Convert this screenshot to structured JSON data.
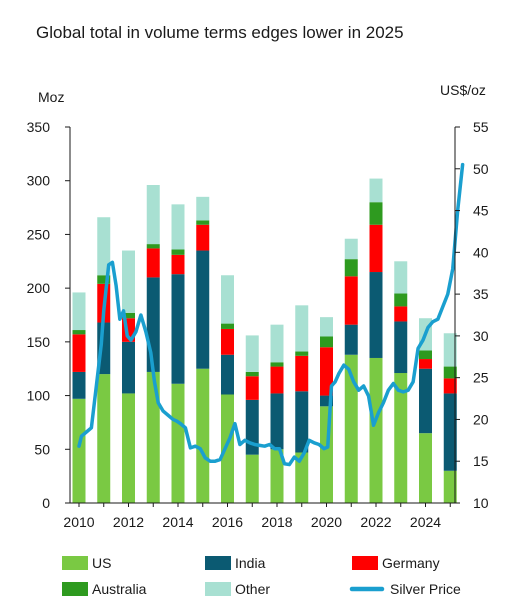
{
  "chart_data": {
    "type": "bar",
    "title": "Global total in volume terms edges lower in 2025",
    "ylabel_left": "Moz",
    "ylabel_right": "US$/oz",
    "ylim_left": [
      0,
      350
    ],
    "ylim_right": [
      10,
      55
    ],
    "yticks_left": [
      "0",
      "50",
      "100",
      "150",
      "200",
      "250",
      "300",
      "350"
    ],
    "yticks_right": [
      "10",
      "15",
      "20",
      "25",
      "30",
      "35",
      "40",
      "45",
      "50",
      "55"
    ],
    "x_tick_labels": [
      "2010",
      "2012",
      "2014",
      "2016",
      "2018",
      "2020",
      "2022",
      "2024"
    ],
    "categories": [
      2010,
      2011,
      2012,
      2013,
      2014,
      2015,
      2016,
      2017,
      2018,
      2019,
      2020,
      2021,
      2022,
      2023,
      2024,
      2025
    ],
    "stacked": true,
    "series": [
      {
        "name": "US",
        "color": "#7ac943",
        "values": [
          97,
          120,
          102,
          122,
          111,
          125,
          101,
          45,
          50,
          47,
          90,
          138,
          135,
          121,
          65,
          30
        ]
      },
      {
        "name": "India",
        "color": "#0b5a72",
        "values": [
          25,
          48,
          48,
          88,
          102,
          110,
          37,
          51,
          52,
          57,
          10,
          28,
          80,
          48,
          60,
          72
        ]
      },
      {
        "name": "Germany",
        "color": "#ff0000",
        "values": [
          35,
          36,
          22,
          27,
          18,
          24,
          24,
          22,
          25,
          33,
          45,
          45,
          44,
          14,
          9,
          14
        ]
      },
      {
        "name": "Australia",
        "color": "#2e9a1f",
        "values": [
          4,
          8,
          5,
          4,
          5,
          4,
          5,
          4,
          4,
          4,
          10,
          16,
          21,
          12,
          8,
          11
        ]
      },
      {
        "name": "Other",
        "color": "#a8e0d2",
        "values": [
          35,
          54,
          58,
          55,
          42,
          22,
          45,
          34,
          35,
          43,
          18,
          19,
          22,
          30,
          30,
          31
        ]
      }
    ],
    "line_series": {
      "name": "Silver Price",
      "color": "#1a9fcf",
      "axis": "right",
      "x": [
        2010.0,
        2010.1,
        2010.3,
        2010.5,
        2010.7,
        2010.9,
        2011.0,
        2011.2,
        2011.35,
        2011.5,
        2011.65,
        2011.8,
        2011.95,
        2012.1,
        2012.3,
        2012.5,
        2012.7,
        2012.9,
        2013.05,
        2013.2,
        2013.4,
        2013.6,
        2013.8,
        2013.95,
        2014.1,
        2014.3,
        2014.5,
        2014.7,
        2014.9,
        2015.1,
        2015.3,
        2015.5,
        2015.7,
        2015.9,
        2016.1,
        2016.3,
        2016.5,
        2016.7,
        2016.9,
        2017.1,
        2017.3,
        2017.5,
        2017.7,
        2017.9,
        2018.1,
        2018.3,
        2018.5,
        2018.7,
        2018.9,
        2019.1,
        2019.3,
        2019.5,
        2019.7,
        2019.9,
        2020.05,
        2020.2,
        2020.35,
        2020.5,
        2020.7,
        2020.9,
        2021.1,
        2021.3,
        2021.5,
        2021.7,
        2021.9,
        2022.1,
        2022.3,
        2022.5,
        2022.7,
        2022.9,
        2023.1,
        2023.3,
        2023.5,
        2023.7,
        2023.9,
        2024.1,
        2024.3,
        2024.5,
        2024.7,
        2024.9,
        2025.1,
        2025.3,
        2025.5
      ],
      "values": [
        16.8,
        18.0,
        18.5,
        19.0,
        24.0,
        29.0,
        33.0,
        38.5,
        38.8,
        36.0,
        32.0,
        33.0,
        30.0,
        29.5,
        30.5,
        32.5,
        30.5,
        28.0,
        24.5,
        22.0,
        21.0,
        20.5,
        20.0,
        19.8,
        19.5,
        19.0,
        16.6,
        16.8,
        16.5,
        15.4,
        15.0,
        15.0,
        15.2,
        16.5,
        17.8,
        19.5,
        17.0,
        17.5,
        17.2,
        17.0,
        16.9,
        16.8,
        17.0,
        16.5,
        16.5,
        14.7,
        14.6,
        15.5,
        15.0,
        16.0,
        17.5,
        17.2,
        17.0,
        16.5,
        16.7,
        24.0,
        24.5,
        25.5,
        26.5,
        26.0,
        24.5,
        23.5,
        24.0,
        22.8,
        19.3,
        20.8,
        22.0,
        23.5,
        24.3,
        23.5,
        23.3,
        23.5,
        24.5,
        28.5,
        29.5,
        31.0,
        31.7,
        32.0,
        33.5,
        35.0,
        38.0,
        45.0,
        50.5
      ]
    },
    "legend_position": "bottom",
    "grid": false
  }
}
